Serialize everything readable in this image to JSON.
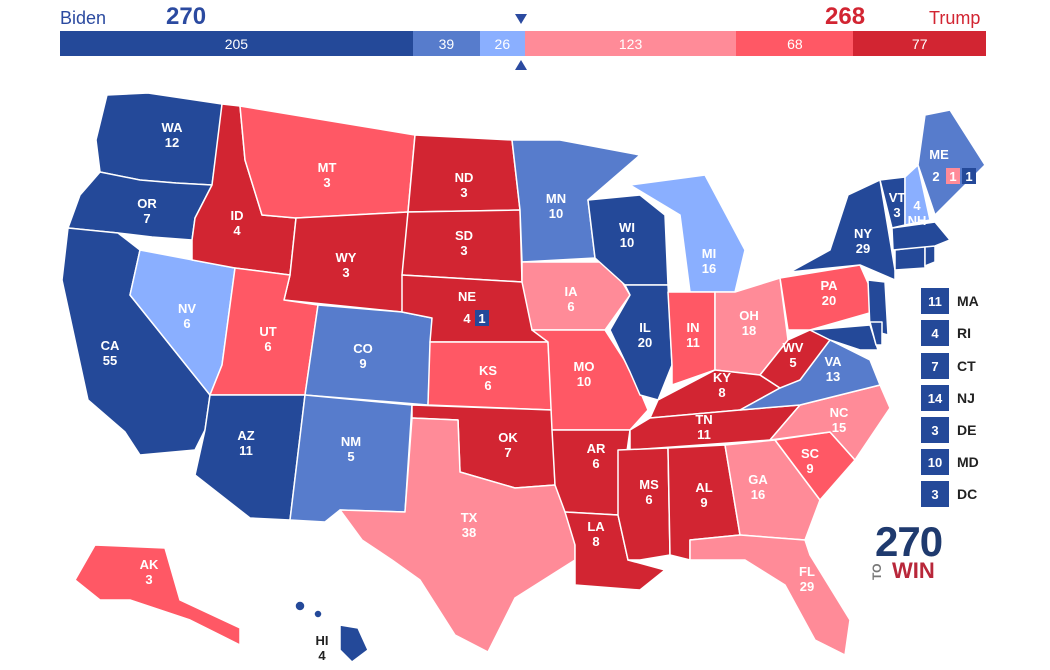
{
  "header": {
    "dem_name": "Biden",
    "dem_total": "270",
    "rep_name": "Trump",
    "rep_total": "268"
  },
  "bar": [
    {
      "value": "205",
      "color": "#244999",
      "share": 205
    },
    {
      "value": "39",
      "color": "#577ccc",
      "share": 39
    },
    {
      "value": "26",
      "color": "#8aafff",
      "share": 26
    },
    {
      "value": "123",
      "color": "#ff8b98",
      "share": 123
    },
    {
      "value": "68",
      "color": "#ff5865",
      "share": 68
    },
    {
      "value": "77",
      "color": "#d22532",
      "share": 77
    }
  ],
  "colors": {
    "safe_dem": "#244999",
    "likely_dem": "#577ccc",
    "lean_dem": "#8aafff",
    "lean_rep": "#ff8b98",
    "likely_rep": "#ff5865",
    "safe_rep": "#d22532"
  },
  "states": {
    "WA": {
      "abbr": "WA",
      "ev": "12"
    },
    "OR": {
      "abbr": "OR",
      "ev": "7"
    },
    "CA": {
      "abbr": "CA",
      "ev": "55"
    },
    "NV": {
      "abbr": "NV",
      "ev": "6"
    },
    "ID": {
      "abbr": "ID",
      "ev": "4"
    },
    "MT": {
      "abbr": "MT",
      "ev": "3"
    },
    "WY": {
      "abbr": "WY",
      "ev": "3"
    },
    "UT": {
      "abbr": "UT",
      "ev": "6"
    },
    "AZ": {
      "abbr": "AZ",
      "ev": "11"
    },
    "CO": {
      "abbr": "CO",
      "ev": "9"
    },
    "NM": {
      "abbr": "NM",
      "ev": "5"
    },
    "ND": {
      "abbr": "ND",
      "ev": "3"
    },
    "SD": {
      "abbr": "SD",
      "ev": "3"
    },
    "NE": {
      "abbr": "NE",
      "ev": "4"
    },
    "NE_CD": {
      "ev": "1"
    },
    "KS": {
      "abbr": "KS",
      "ev": "6"
    },
    "OK": {
      "abbr": "OK",
      "ev": "7"
    },
    "TX": {
      "abbr": "TX",
      "ev": "38"
    },
    "MN": {
      "abbr": "MN",
      "ev": "10"
    },
    "IA": {
      "abbr": "IA",
      "ev": "6"
    },
    "MO": {
      "abbr": "MO",
      "ev": "10"
    },
    "AR": {
      "abbr": "AR",
      "ev": "6"
    },
    "LA": {
      "abbr": "LA",
      "ev": "8"
    },
    "WI": {
      "abbr": "WI",
      "ev": "10"
    },
    "IL": {
      "abbr": "IL",
      "ev": "20"
    },
    "MI": {
      "abbr": "MI",
      "ev": "16"
    },
    "IN": {
      "abbr": "IN",
      "ev": "11"
    },
    "OH": {
      "abbr": "OH",
      "ev": "18"
    },
    "KY": {
      "abbr": "KY",
      "ev": "8"
    },
    "TN": {
      "abbr": "TN",
      "ev": "11"
    },
    "MS": {
      "abbr": "MS",
      "ev": "6"
    },
    "AL": {
      "abbr": "AL",
      "ev": "9"
    },
    "GA": {
      "abbr": "GA",
      "ev": "16"
    },
    "FL": {
      "abbr": "FL",
      "ev": "29"
    },
    "SC": {
      "abbr": "SC",
      "ev": "9"
    },
    "NC": {
      "abbr": "NC",
      "ev": "15"
    },
    "VA": {
      "abbr": "VA",
      "ev": "13"
    },
    "WV": {
      "abbr": "WV",
      "ev": "5"
    },
    "PA": {
      "abbr": "PA",
      "ev": "20"
    },
    "NY": {
      "abbr": "NY",
      "ev": "29"
    },
    "VT": {
      "abbr": "VT",
      "ev": "3"
    },
    "NH": {
      "abbr": "NH",
      "ev": "4"
    },
    "ME": {
      "abbr": "ME",
      "ev": "2"
    },
    "ME_CD1": {
      "ev": "1"
    },
    "ME_CD2": {
      "ev": "1"
    },
    "AK": {
      "abbr": "AK",
      "ev": "3"
    },
    "HI": {
      "abbr": "HI",
      "ev": "4"
    }
  },
  "small_states": [
    {
      "abbr": "MA",
      "ev": "11"
    },
    {
      "abbr": "RI",
      "ev": "4"
    },
    {
      "abbr": "CT",
      "ev": "7"
    },
    {
      "abbr": "NJ",
      "ev": "14"
    },
    {
      "abbr": "DE",
      "ev": "3"
    },
    {
      "abbr": "MD",
      "ev": "10"
    },
    {
      "abbr": "DC",
      "ev": "3"
    }
  ],
  "logo": {
    "number": "270",
    "to": "TO",
    "win": "WIN"
  }
}
